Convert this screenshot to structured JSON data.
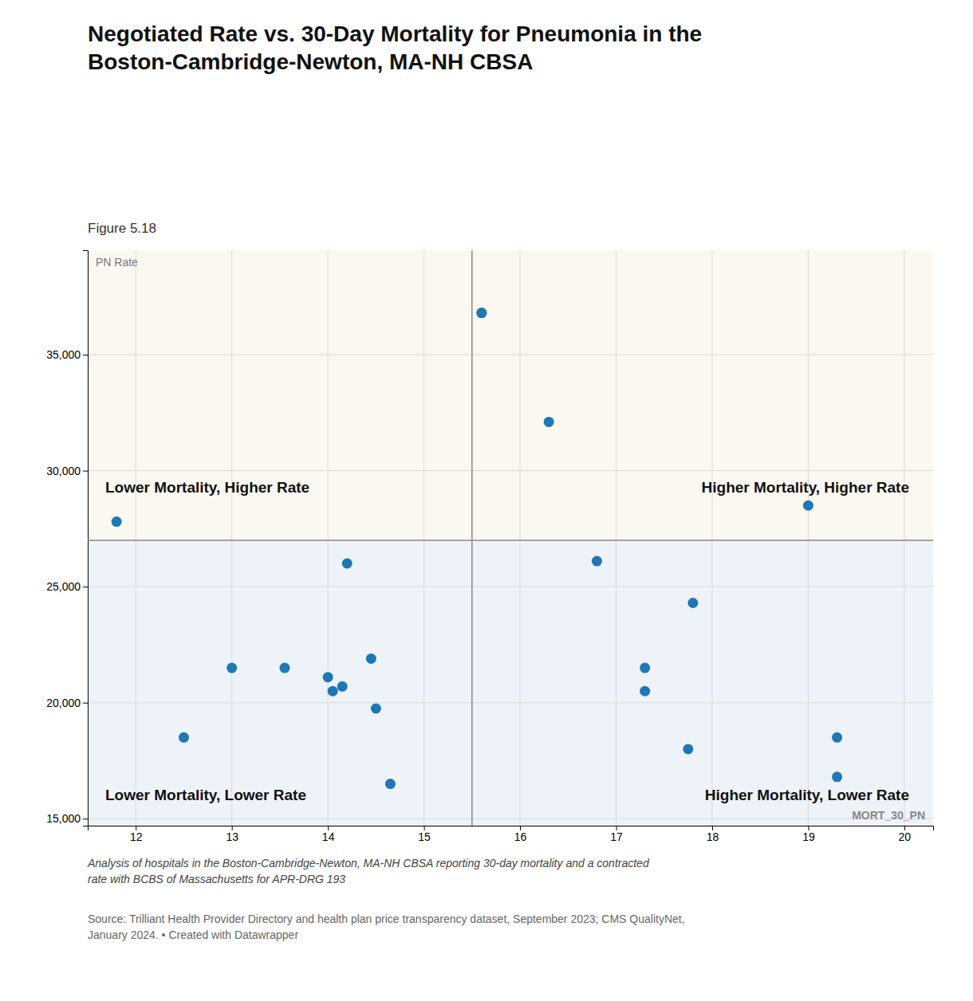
{
  "chart_data": {
    "type": "scatter",
    "title": "Negotiated Rate vs. 30-Day Mortality for Pneumonia in the\nBoston-Cambridge-Newton, MA-NH CBSA",
    "subtitle": "Figure 5.18",
    "xlabel": "MORT_30_PN",
    "ylabel": "PN Rate",
    "x": [
      11.8,
      12.5,
      13.0,
      13.55,
      14.0,
      14.05,
      14.15,
      14.2,
      14.45,
      14.5,
      14.65,
      15.6,
      16.3,
      16.8,
      17.3,
      17.3,
      17.8,
      19.0,
      19.3,
      19.3,
      17.75,
      15.6
    ],
    "values": [
      27800,
      18500,
      21500,
      21500,
      21100,
      20500,
      20700,
      26000,
      21900,
      19750,
      16500,
      36800,
      32100,
      26100,
      21500,
      20500,
      24300,
      28500,
      18500,
      16800,
      18000,
      36800
    ],
    "median_x": 15.5,
    "median_y": 27000,
    "xlim": [
      11.5,
      20.3
    ],
    "ylim": [
      14700,
      39500
    ],
    "xticks": [
      12,
      13,
      14,
      15,
      16,
      17,
      18,
      19,
      20
    ],
    "yticks": [
      {
        "value": 15000,
        "label": "15,000"
      },
      {
        "value": 20000,
        "label": "20,000"
      },
      {
        "value": 25000,
        "label": "25,000"
      },
      {
        "value": 30000,
        "label": "30,000"
      },
      {
        "value": 35000,
        "label": "35,000"
      }
    ],
    "grid": true,
    "annotations": [
      "Lower Mortality, Higher Rate",
      "Higher Mortality, Higher Rate",
      "Lower Mortality, Lower Rate",
      "Higher Mortality, Lower Rate"
    ],
    "footnotes": [
      "Analysis of hospitals in the Boston-Cambridge-Newton, MA-NH CBSA reporting 30-day mortality and a contracted\nrate with BCBS of Massachusetts for APR-DRG 193",
      "Source: Trilliant Health Provider Directory and health plan price transparency dataset, September 2023; CMS QualityNet,\nJanuary 2024. • Created with Datawrapper"
    ]
  }
}
